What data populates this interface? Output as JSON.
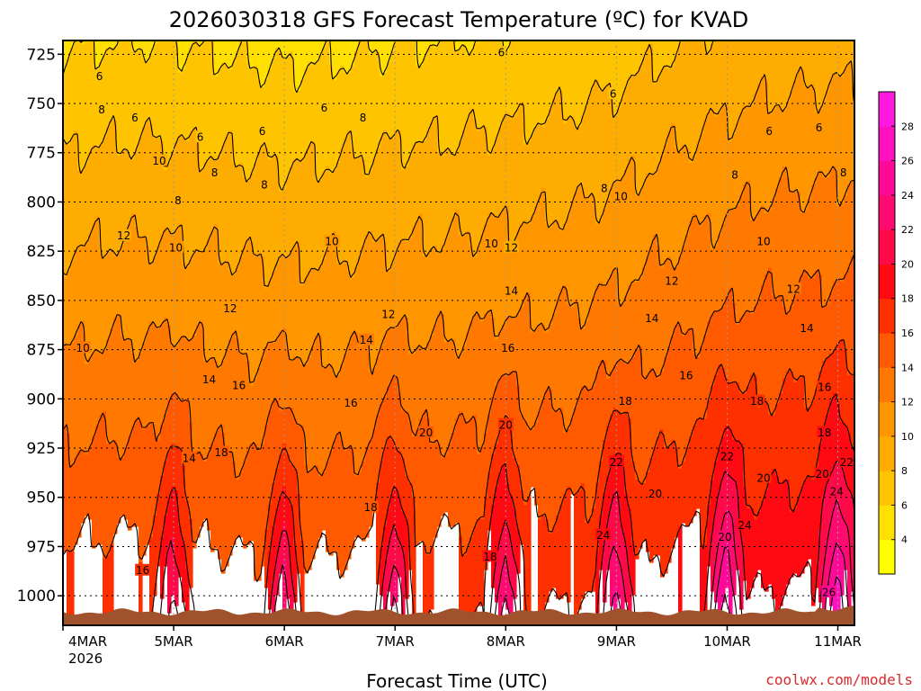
{
  "chart_data": {
    "type": "heatmap",
    "title": "2026030318 GFS Forecast Temperature (ºC) for KVAD",
    "xlabel": "Forecast Time (UTC)",
    "ylabel": "",
    "credit": "coolwx.com/models",
    "y_axis": {
      "unit": "hPa",
      "range": [
        1015,
        718
      ],
      "ticks": [
        725,
        750,
        775,
        800,
        825,
        850,
        875,
        900,
        925,
        950,
        975,
        1000
      ]
    },
    "x_axis": {
      "unit": "days since 4MAR 00Z",
      "range": [
        0,
        7.15
      ],
      "ticks": [
        {
          "value": 0,
          "label": "4MAR",
          "sublabel": "2026"
        },
        {
          "value": 1,
          "label": "5MAR"
        },
        {
          "value": 2,
          "label": "6MAR"
        },
        {
          "value": 3,
          "label": "7MAR"
        },
        {
          "value": 4,
          "label": "8MAR"
        },
        {
          "value": 5,
          "label": "9MAR"
        },
        {
          "value": 6,
          "label": "10MAR"
        },
        {
          "value": 7,
          "label": "11MAR"
        }
      ]
    },
    "colorbar": {
      "levels": [
        4,
        6,
        8,
        10,
        12,
        14,
        16,
        18,
        20,
        22,
        24,
        26,
        28
      ],
      "colors": [
        "#ffff00",
        "#ffe000",
        "#ffc400",
        "#ffac00",
        "#ff9600",
        "#ff7800",
        "#ff5a00",
        "#ff3000",
        "#ff0a12",
        "#ff0a48",
        "#ff0a70",
        "#ff0a98",
        "#ff10c0",
        "#ff18e0"
      ]
    },
    "contour_levels": [
      6,
      8,
      10,
      12,
      14,
      16,
      18,
      20,
      22,
      24,
      26
    ],
    "contour_labels": [
      {
        "text": "6",
        "x": 0.33,
        "y": 736
      },
      {
        "text": "6",
        "x": 0.65,
        "y": 757
      },
      {
        "text": "6",
        "x": 1.24,
        "y": 767
      },
      {
        "text": "6",
        "x": 1.8,
        "y": 764
      },
      {
        "text": "6",
        "x": 2.36,
        "y": 752
      },
      {
        "text": "6",
        "x": 3.96,
        "y": 724
      },
      {
        "text": "6",
        "x": 4.97,
        "y": 745
      },
      {
        "text": "6",
        "x": 6.38,
        "y": 764
      },
      {
        "text": "6",
        "x": 6.83,
        "y": 762
      },
      {
        "text": "8",
        "x": 0.35,
        "y": 753
      },
      {
        "text": "8",
        "x": 1.37,
        "y": 785
      },
      {
        "text": "8",
        "x": 2.71,
        "y": 757
      },
      {
        "text": "8",
        "x": 1.82,
        "y": 791
      },
      {
        "text": "8",
        "x": 4.89,
        "y": 793
      },
      {
        "text": "8",
        "x": 6.07,
        "y": 786
      },
      {
        "text": "8",
        "x": 7.05,
        "y": 785
      },
      {
        "text": "8",
        "x": 1.04,
        "y": 799
      },
      {
        "text": "10",
        "x": 0.87,
        "y": 779
      },
      {
        "text": "10",
        "x": 1.02,
        "y": 823
      },
      {
        "text": "10",
        "x": 2.43,
        "y": 820
      },
      {
        "text": "10",
        "x": 3.87,
        "y": 821
      },
      {
        "text": "10",
        "x": 5.04,
        "y": 797
      },
      {
        "text": "10",
        "x": 6.33,
        "y": 820
      },
      {
        "text": "10",
        "x": 0.18,
        "y": 874
      },
      {
        "text": "12",
        "x": 0.55,
        "y": 817
      },
      {
        "text": "12",
        "x": 1.51,
        "y": 854
      },
      {
        "text": "12",
        "x": 2.94,
        "y": 857
      },
      {
        "text": "12",
        "x": 4.05,
        "y": 823
      },
      {
        "text": "12",
        "x": 5.5,
        "y": 840
      },
      {
        "text": "12",
        "x": 6.6,
        "y": 844
      },
      {
        "text": "14",
        "x": 1.32,
        "y": 890
      },
      {
        "text": "14",
        "x": 2.74,
        "y": 870
      },
      {
        "text": "14",
        "x": 4.05,
        "y": 845
      },
      {
        "text": "14",
        "x": 5.32,
        "y": 859
      },
      {
        "text": "14",
        "x": 6.72,
        "y": 864
      },
      {
        "text": "14",
        "x": 1.14,
        "y": 930
      },
      {
        "text": "16",
        "x": 1.59,
        "y": 893
      },
      {
        "text": "16",
        "x": 2.6,
        "y": 902
      },
      {
        "text": "16",
        "x": 4.02,
        "y": 874
      },
      {
        "text": "16",
        "x": 5.63,
        "y": 888
      },
      {
        "text": "16",
        "x": 6.88,
        "y": 894
      },
      {
        "text": "16",
        "x": 0.72,
        "y": 987
      },
      {
        "text": "18",
        "x": 1.43,
        "y": 927
      },
      {
        "text": "18",
        "x": 2.78,
        "y": 955
      },
      {
        "text": "18",
        "x": 3.86,
        "y": 980
      },
      {
        "text": "18",
        "x": 5.08,
        "y": 901
      },
      {
        "text": "18",
        "x": 6.27,
        "y": 901
      },
      {
        "text": "18",
        "x": 6.88,
        "y": 917
      },
      {
        "text": "20",
        "x": 3.28,
        "y": 917
      },
      {
        "text": "20",
        "x": 4.0,
        "y": 913
      },
      {
        "text": "20",
        "x": 5.35,
        "y": 948
      },
      {
        "text": "20",
        "x": 5.98,
        "y": 970
      },
      {
        "text": "20",
        "x": 6.33,
        "y": 940
      },
      {
        "text": "20",
        "x": 6.86,
        "y": 938
      },
      {
        "text": "22",
        "x": 5.0,
        "y": 932
      },
      {
        "text": "22",
        "x": 6.0,
        "y": 929
      },
      {
        "text": "22",
        "x": 7.08,
        "y": 932
      },
      {
        "text": "24",
        "x": 4.88,
        "y": 969
      },
      {
        "text": "24",
        "x": 6.16,
        "y": 964
      },
      {
        "text": "24",
        "x": 6.99,
        "y": 947
      },
      {
        "text": "26",
        "x": 6.92,
        "y": 998
      }
    ]
  }
}
